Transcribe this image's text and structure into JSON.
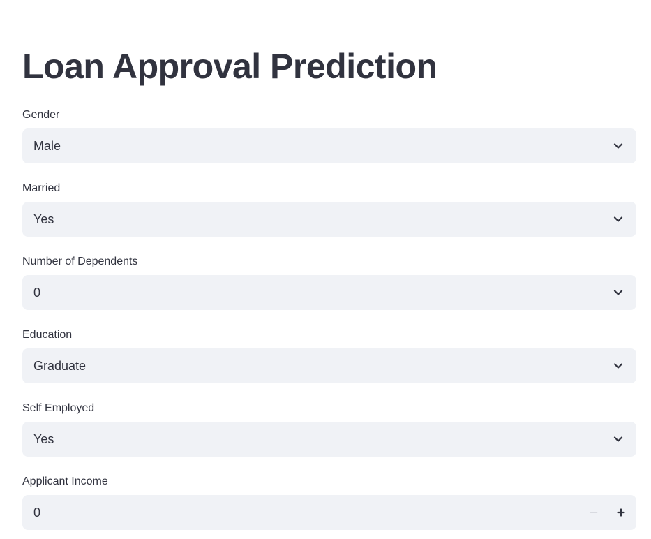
{
  "page": {
    "title": "Loan Approval Prediction"
  },
  "fields": [
    {
      "label": "Gender",
      "value": "Male",
      "kind": "select",
      "icon": "chevron-down-icon"
    },
    {
      "label": "Married",
      "value": "Yes",
      "kind": "select",
      "icon": "chevron-down-icon"
    },
    {
      "label": "Number of Dependents",
      "value": "0",
      "kind": "select",
      "icon": "chevron-down-icon"
    },
    {
      "label": "Education",
      "value": "Graduate",
      "kind": "select",
      "icon": "chevron-down-icon"
    },
    {
      "label": "Self Employed",
      "value": "Yes",
      "kind": "select",
      "icon": "chevron-down-icon"
    },
    {
      "label": "Applicant Income",
      "value": "0",
      "kind": "number",
      "icons": [
        "minus-icon",
        "plus-icon"
      ]
    }
  ],
  "colors": {
    "text": "#31333f",
    "input_background": "#f0f2f6",
    "disabled_icon": "#d0d2d8"
  }
}
